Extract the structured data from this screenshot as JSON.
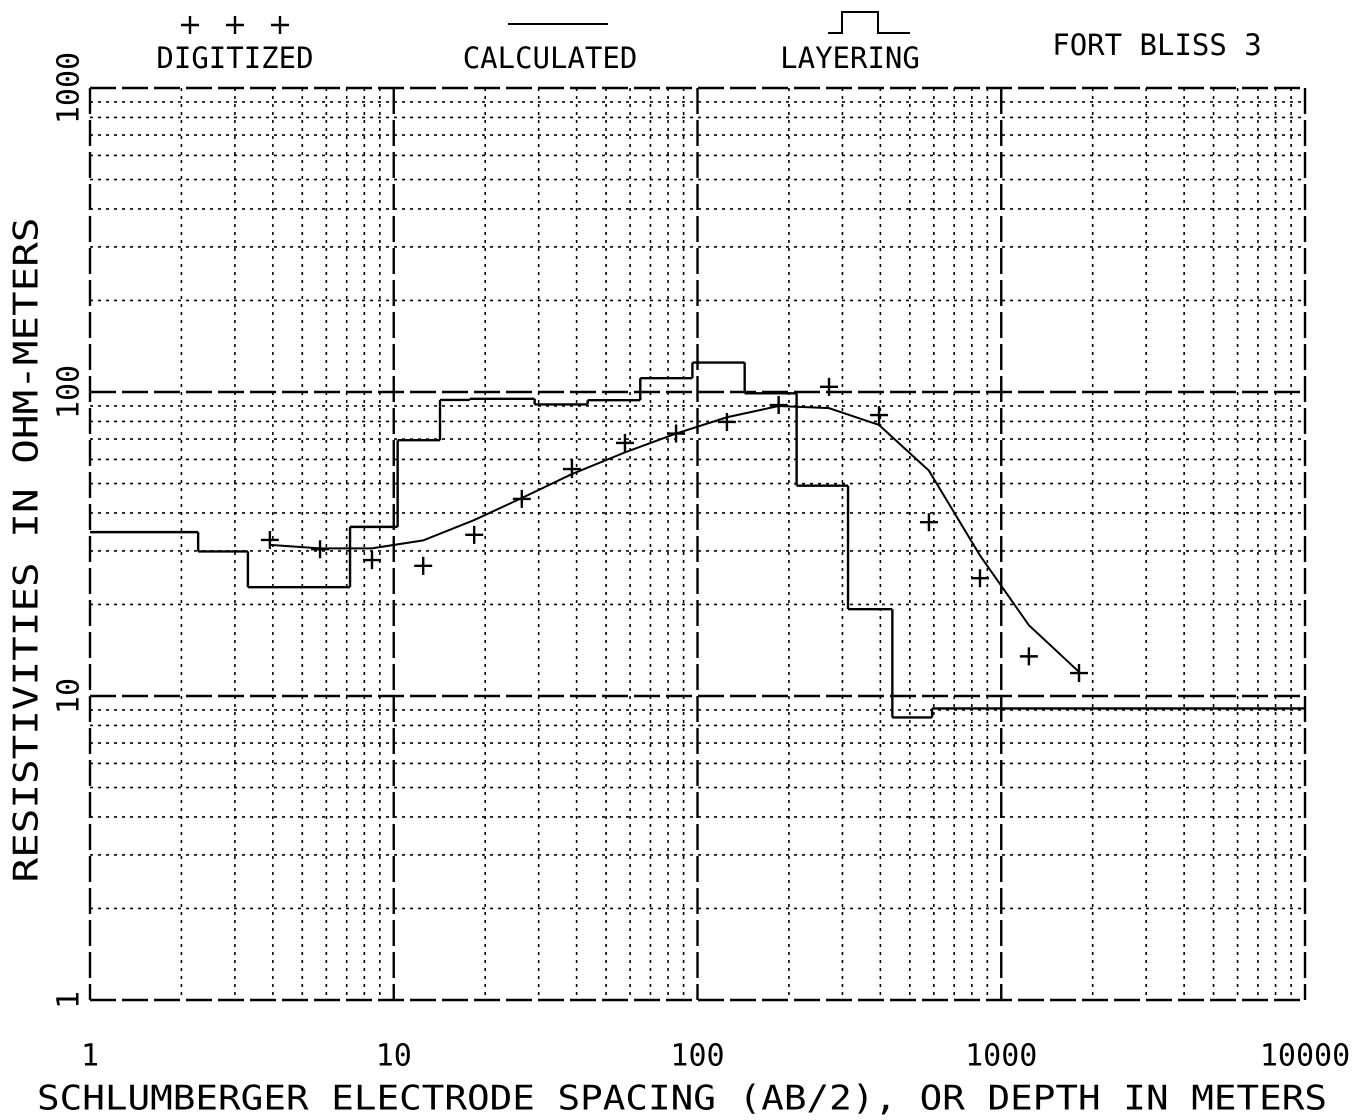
{
  "chart_data": {
    "type": "line",
    "title": "FORT BLISS 3",
    "xlabel": "SCHLUMBERGER ELECTRODE SPACING (AB/2), OR DEPTH IN METERS",
    "ylabel": "RESISTIVITIES IN OHM-METERS",
    "xscale": "log",
    "yscale": "log",
    "xlim": [
      1,
      10000
    ],
    "ylim": [
      1,
      1000
    ],
    "xticks": [
      1,
      10,
      100,
      1000,
      10000
    ],
    "yticks": [
      1,
      10,
      100,
      1000
    ],
    "grid": true,
    "series": [
      {
        "name": "DIGITIZED",
        "style": "marker",
        "color": "#000000",
        "x": [
          3.91,
          5.72,
          8.48,
          12.5,
          18.4,
          26.4,
          38.6,
          57.7,
          85,
          125,
          185,
          271,
          396,
          578,
          851,
          1233,
          1803
        ],
        "values": [
          32.6,
          30.4,
          28.0,
          26.8,
          33.9,
          44.5,
          55.8,
          68,
          73,
          79.7,
          90.6,
          104,
          84,
          37.3,
          24.4,
          13.5,
          11.9
        ]
      },
      {
        "name": "CALCULATED",
        "style": "line",
        "color": "#000000",
        "x": [
          3.91,
          5.72,
          8.48,
          12.5,
          18.4,
          26.4,
          38.6,
          57.7,
          85,
          125,
          185,
          271,
          396,
          578,
          851,
          1233,
          1803
        ],
        "values": [
          31.4,
          30.6,
          30.6,
          32.5,
          37.9,
          44.8,
          53.7,
          63.3,
          73,
          82.6,
          89.9,
          88.5,
          77.9,
          55.1,
          29.0,
          17.1,
          12.0
        ]
      },
      {
        "name": "LAYERING",
        "style": "step",
        "color": "#000000",
        "x": [
          1,
          2.27,
          3.31,
          7.18,
          10.3,
          14.2,
          17.8,
          29.1,
          43.5,
          64.8,
          96.2,
          143,
          212,
          313,
          438,
          592
        ],
        "values": [
          34.6,
          29.9,
          22.8,
          36.0,
          69.4,
          94.2,
          95,
          91,
          94,
          111,
          125,
          99,
          49.2,
          19.3,
          8.5,
          9.1
        ]
      }
    ]
  }
}
